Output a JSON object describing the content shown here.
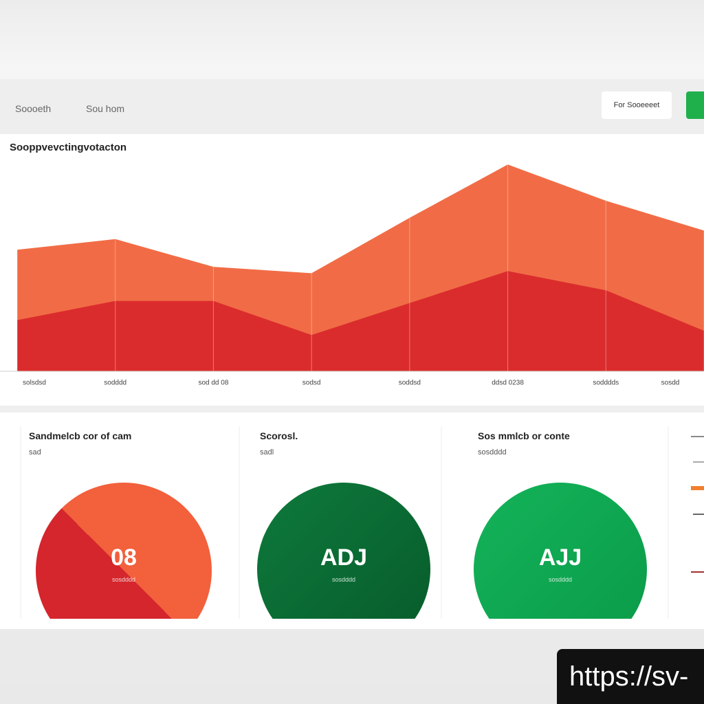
{
  "header": {
    "nav": [
      "Soooeth",
      "Sou hom"
    ],
    "button": "For Sooeeeet"
  },
  "chart_data": {
    "type": "area",
    "title": "Sooppvevctingvotacton",
    "categories": [
      "solsdsd",
      "sodddd",
      "sod dd 08",
      "sodsd",
      "soddsd",
      "ddsd 0238",
      "sodddds",
      "sosdd"
    ],
    "series": [
      {
        "color": "#f0643c",
        "values": [
          57,
          62,
          49,
          46,
          72,
          97,
          80,
          66
        ]
      },
      {
        "color": "#d8262a",
        "values": [
          24,
          33,
          33,
          17,
          32,
          47,
          38,
          19
        ]
      }
    ],
    "ylim": [
      0,
      100
    ]
  },
  "cards": [
    {
      "title": "Sandmelcb cor of cam",
      "sub": "sad",
      "value": "08",
      "caption": "sosdddd"
    },
    {
      "title": "Scorosl.",
      "sub": "sadl",
      "value": "ADJ",
      "caption": "sosdddd"
    },
    {
      "title": "Sos mmlcb or conte",
      "sub": "sosdddd",
      "value": "AJJ",
      "caption": "sosdddd"
    }
  ],
  "banner": "https://sv-"
}
